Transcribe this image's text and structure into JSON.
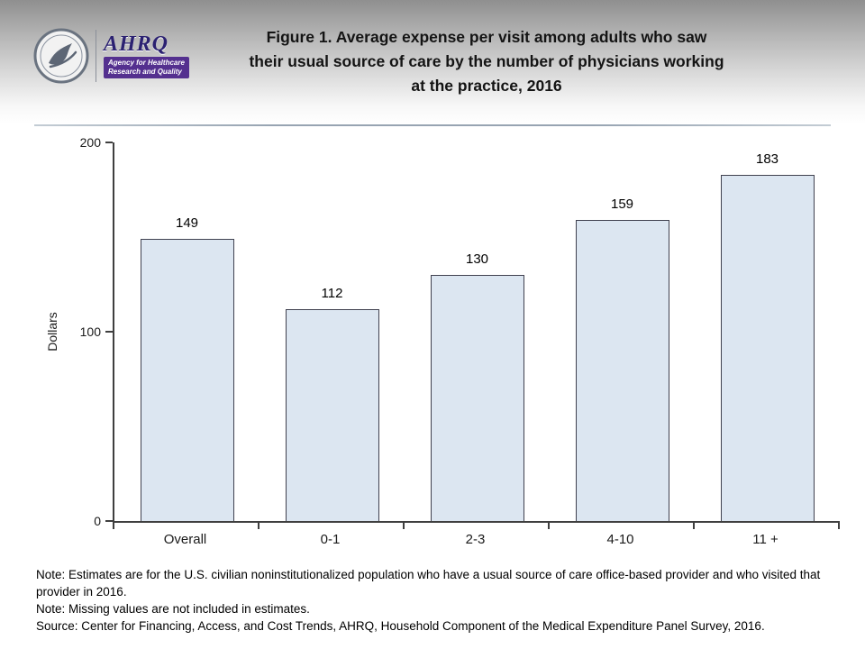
{
  "header": {
    "title_lines": [
      "Figure 1. Average expense per visit among adults who saw",
      "their usual source of care by the number of physicians working",
      "at the practice, 2016"
    ],
    "ahrq_logo_text": "AHRQ",
    "ahrq_tagline_line1": "Agency for Healthcare",
    "ahrq_tagline_line2": "Research and Quality"
  },
  "chart_data": {
    "type": "bar",
    "categories": [
      "Overall",
      "0-1",
      "2-3",
      "4-10",
      "11 +"
    ],
    "values": [
      149,
      112,
      130,
      159,
      183
    ],
    "title": "Figure 1. Average expense per visit among adults who saw their usual source of care by the number of physicians working at the practice, 2016",
    "xlabel": "",
    "ylabel": "Dollars",
    "ylim": [
      0,
      200
    ],
    "yticks": [
      0,
      100,
      200
    ],
    "grid": false,
    "legend": "none",
    "bar_fill": "#dce6f1",
    "bar_border": "#40414f"
  },
  "notes": [
    "Note: Estimates are for the U.S. civilian noninstitutionalized population who have a usual source of care office-based provider and who visited that provider in 2016.",
    "Note: Missing values are not included in estimates.",
    "Source: Center for Financing, Access, and Cost Trends, AHRQ, Household Component of the Medical Expenditure Panel Survey, 2016."
  ]
}
